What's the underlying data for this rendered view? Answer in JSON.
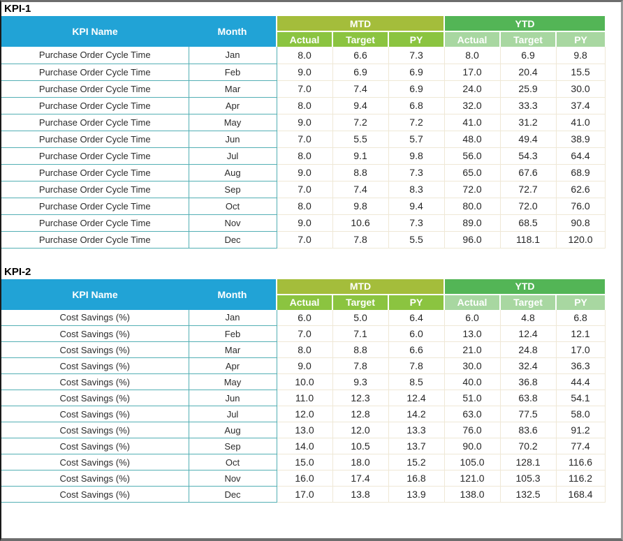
{
  "colors": {
    "header_blue": "#21a3d6",
    "mtd_band_green": "#a4bd3b",
    "mtd_sub_green": "#8bc440",
    "ytd_band_green": "#53b556",
    "ytd_sub_green": "#a8d7a1",
    "name_cell_border": "#53afb4",
    "number_cell_border": "#efe8d6",
    "frame_gray": "#6d6d6d"
  },
  "tables": [
    {
      "title": "KPI-1",
      "kpi_name": "Purchase Order Cycle Time",
      "headers": {
        "kpi_name": "KPI Name",
        "month": "Month",
        "mtd": "MTD",
        "ytd": "YTD",
        "sub": [
          "Actual",
          "Target",
          "PY"
        ]
      },
      "rows": [
        {
          "month": "Jan",
          "values": [
            "8.0",
            "6.6",
            "7.3",
            "8.0",
            "6.9",
            "9.8"
          ]
        },
        {
          "month": "Feb",
          "values": [
            "9.0",
            "6.9",
            "6.9",
            "17.0",
            "20.4",
            "15.5"
          ]
        },
        {
          "month": "Mar",
          "values": [
            "7.0",
            "7.4",
            "6.9",
            "24.0",
            "25.9",
            "30.0"
          ]
        },
        {
          "month": "Apr",
          "values": [
            "8.0",
            "9.4",
            "6.8",
            "32.0",
            "33.3",
            "37.4"
          ]
        },
        {
          "month": "May",
          "values": [
            "9.0",
            "7.2",
            "7.2",
            "41.0",
            "31.2",
            "41.0"
          ]
        },
        {
          "month": "Jun",
          "values": [
            "7.0",
            "5.5",
            "5.7",
            "48.0",
            "49.4",
            "38.9"
          ]
        },
        {
          "month": "Jul",
          "values": [
            "8.0",
            "9.1",
            "9.8",
            "56.0",
            "54.3",
            "64.4"
          ]
        },
        {
          "month": "Aug",
          "values": [
            "9.0",
            "8.8",
            "7.3",
            "65.0",
            "67.6",
            "68.9"
          ]
        },
        {
          "month": "Sep",
          "values": [
            "7.0",
            "7.4",
            "8.3",
            "72.0",
            "72.7",
            "62.6"
          ]
        },
        {
          "month": "Oct",
          "values": [
            "8.0",
            "9.8",
            "9.4",
            "80.0",
            "72.0",
            "76.0"
          ]
        },
        {
          "month": "Nov",
          "values": [
            "9.0",
            "10.6",
            "7.3",
            "89.0",
            "68.5",
            "90.8"
          ]
        },
        {
          "month": "Dec",
          "values": [
            "7.0",
            "7.8",
            "5.5",
            "96.0",
            "118.1",
            "120.0"
          ]
        }
      ]
    },
    {
      "title": "KPI-2",
      "kpi_name": "Cost Savings (%)",
      "headers": {
        "kpi_name": "KPI Name",
        "month": "Month",
        "mtd": "MTD",
        "ytd": "YTD",
        "sub": [
          "Actual",
          "Target",
          "PY"
        ]
      },
      "rows": [
        {
          "month": "Jan",
          "values": [
            "6.0",
            "5.0",
            "6.4",
            "6.0",
            "4.8",
            "6.8"
          ]
        },
        {
          "month": "Feb",
          "values": [
            "7.0",
            "7.1",
            "6.0",
            "13.0",
            "12.4",
            "12.1"
          ]
        },
        {
          "month": "Mar",
          "values": [
            "8.0",
            "8.8",
            "6.6",
            "21.0",
            "24.8",
            "17.0"
          ]
        },
        {
          "month": "Apr",
          "values": [
            "9.0",
            "7.8",
            "7.8",
            "30.0",
            "32.4",
            "36.3"
          ]
        },
        {
          "month": "May",
          "values": [
            "10.0",
            "9.3",
            "8.5",
            "40.0",
            "36.8",
            "44.4"
          ]
        },
        {
          "month": "Jun",
          "values": [
            "11.0",
            "12.3",
            "12.4",
            "51.0",
            "63.8",
            "54.1"
          ]
        },
        {
          "month": "Jul",
          "values": [
            "12.0",
            "12.8",
            "14.2",
            "63.0",
            "77.5",
            "58.0"
          ]
        },
        {
          "month": "Aug",
          "values": [
            "13.0",
            "12.0",
            "13.3",
            "76.0",
            "83.6",
            "91.2"
          ]
        },
        {
          "month": "Sep",
          "values": [
            "14.0",
            "10.5",
            "13.7",
            "90.0",
            "70.2",
            "77.4"
          ]
        },
        {
          "month": "Oct",
          "values": [
            "15.0",
            "18.0",
            "15.2",
            "105.0",
            "128.1",
            "116.6"
          ]
        },
        {
          "month": "Nov",
          "values": [
            "16.0",
            "17.4",
            "16.8",
            "121.0",
            "105.3",
            "116.2"
          ]
        },
        {
          "month": "Dec",
          "values": [
            "17.0",
            "13.8",
            "13.9",
            "138.0",
            "132.5",
            "168.4"
          ]
        }
      ]
    }
  ]
}
